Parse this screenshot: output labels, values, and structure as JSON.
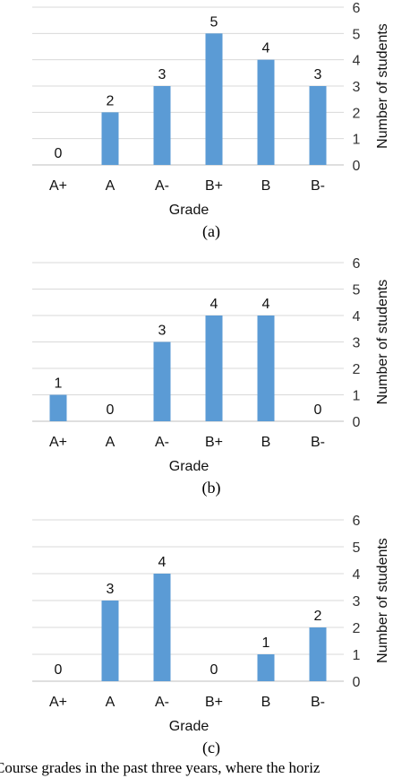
{
  "chart_data": [
    {
      "type": "bar",
      "categories": [
        "A+",
        "A",
        "A-",
        "B+",
        "B",
        "B-"
      ],
      "values": [
        0,
        2,
        3,
        5,
        4,
        3
      ],
      "xlabel": "Grade",
      "ylabel": "Number of students",
      "ylim": [
        0,
        6
      ],
      "yticks": [
        0,
        1,
        2,
        3,
        4,
        5,
        6
      ],
      "subcaption": "(a)",
      "bar_color": "#5b9bd5",
      "grid": true,
      "y_axis_position": "right"
    },
    {
      "type": "bar",
      "categories": [
        "A+",
        "A",
        "A-",
        "B+",
        "B",
        "B-"
      ],
      "values": [
        1,
        0,
        3,
        4,
        4,
        0
      ],
      "xlabel": "Grade",
      "ylabel": "Number of students",
      "ylim": [
        0,
        6
      ],
      "yticks": [
        0,
        1,
        2,
        3,
        4,
        5,
        6
      ],
      "subcaption": "(b)",
      "bar_color": "#5b9bd5",
      "grid": true,
      "y_axis_position": "right"
    },
    {
      "type": "bar",
      "categories": [
        "A+",
        "A",
        "A-",
        "B+",
        "B",
        "B-"
      ],
      "values": [
        0,
        3,
        4,
        0,
        1,
        2
      ],
      "xlabel": "Grade",
      "ylabel": "Number of students",
      "ylim": [
        0,
        6
      ],
      "yticks": [
        0,
        1,
        2,
        3,
        4,
        5,
        6
      ],
      "subcaption": "(c)",
      "bar_color": "#5b9bd5",
      "grid": true,
      "y_axis_position": "right"
    }
  ],
  "caption_fragment": "Course grades in the past three years, where the horiz"
}
